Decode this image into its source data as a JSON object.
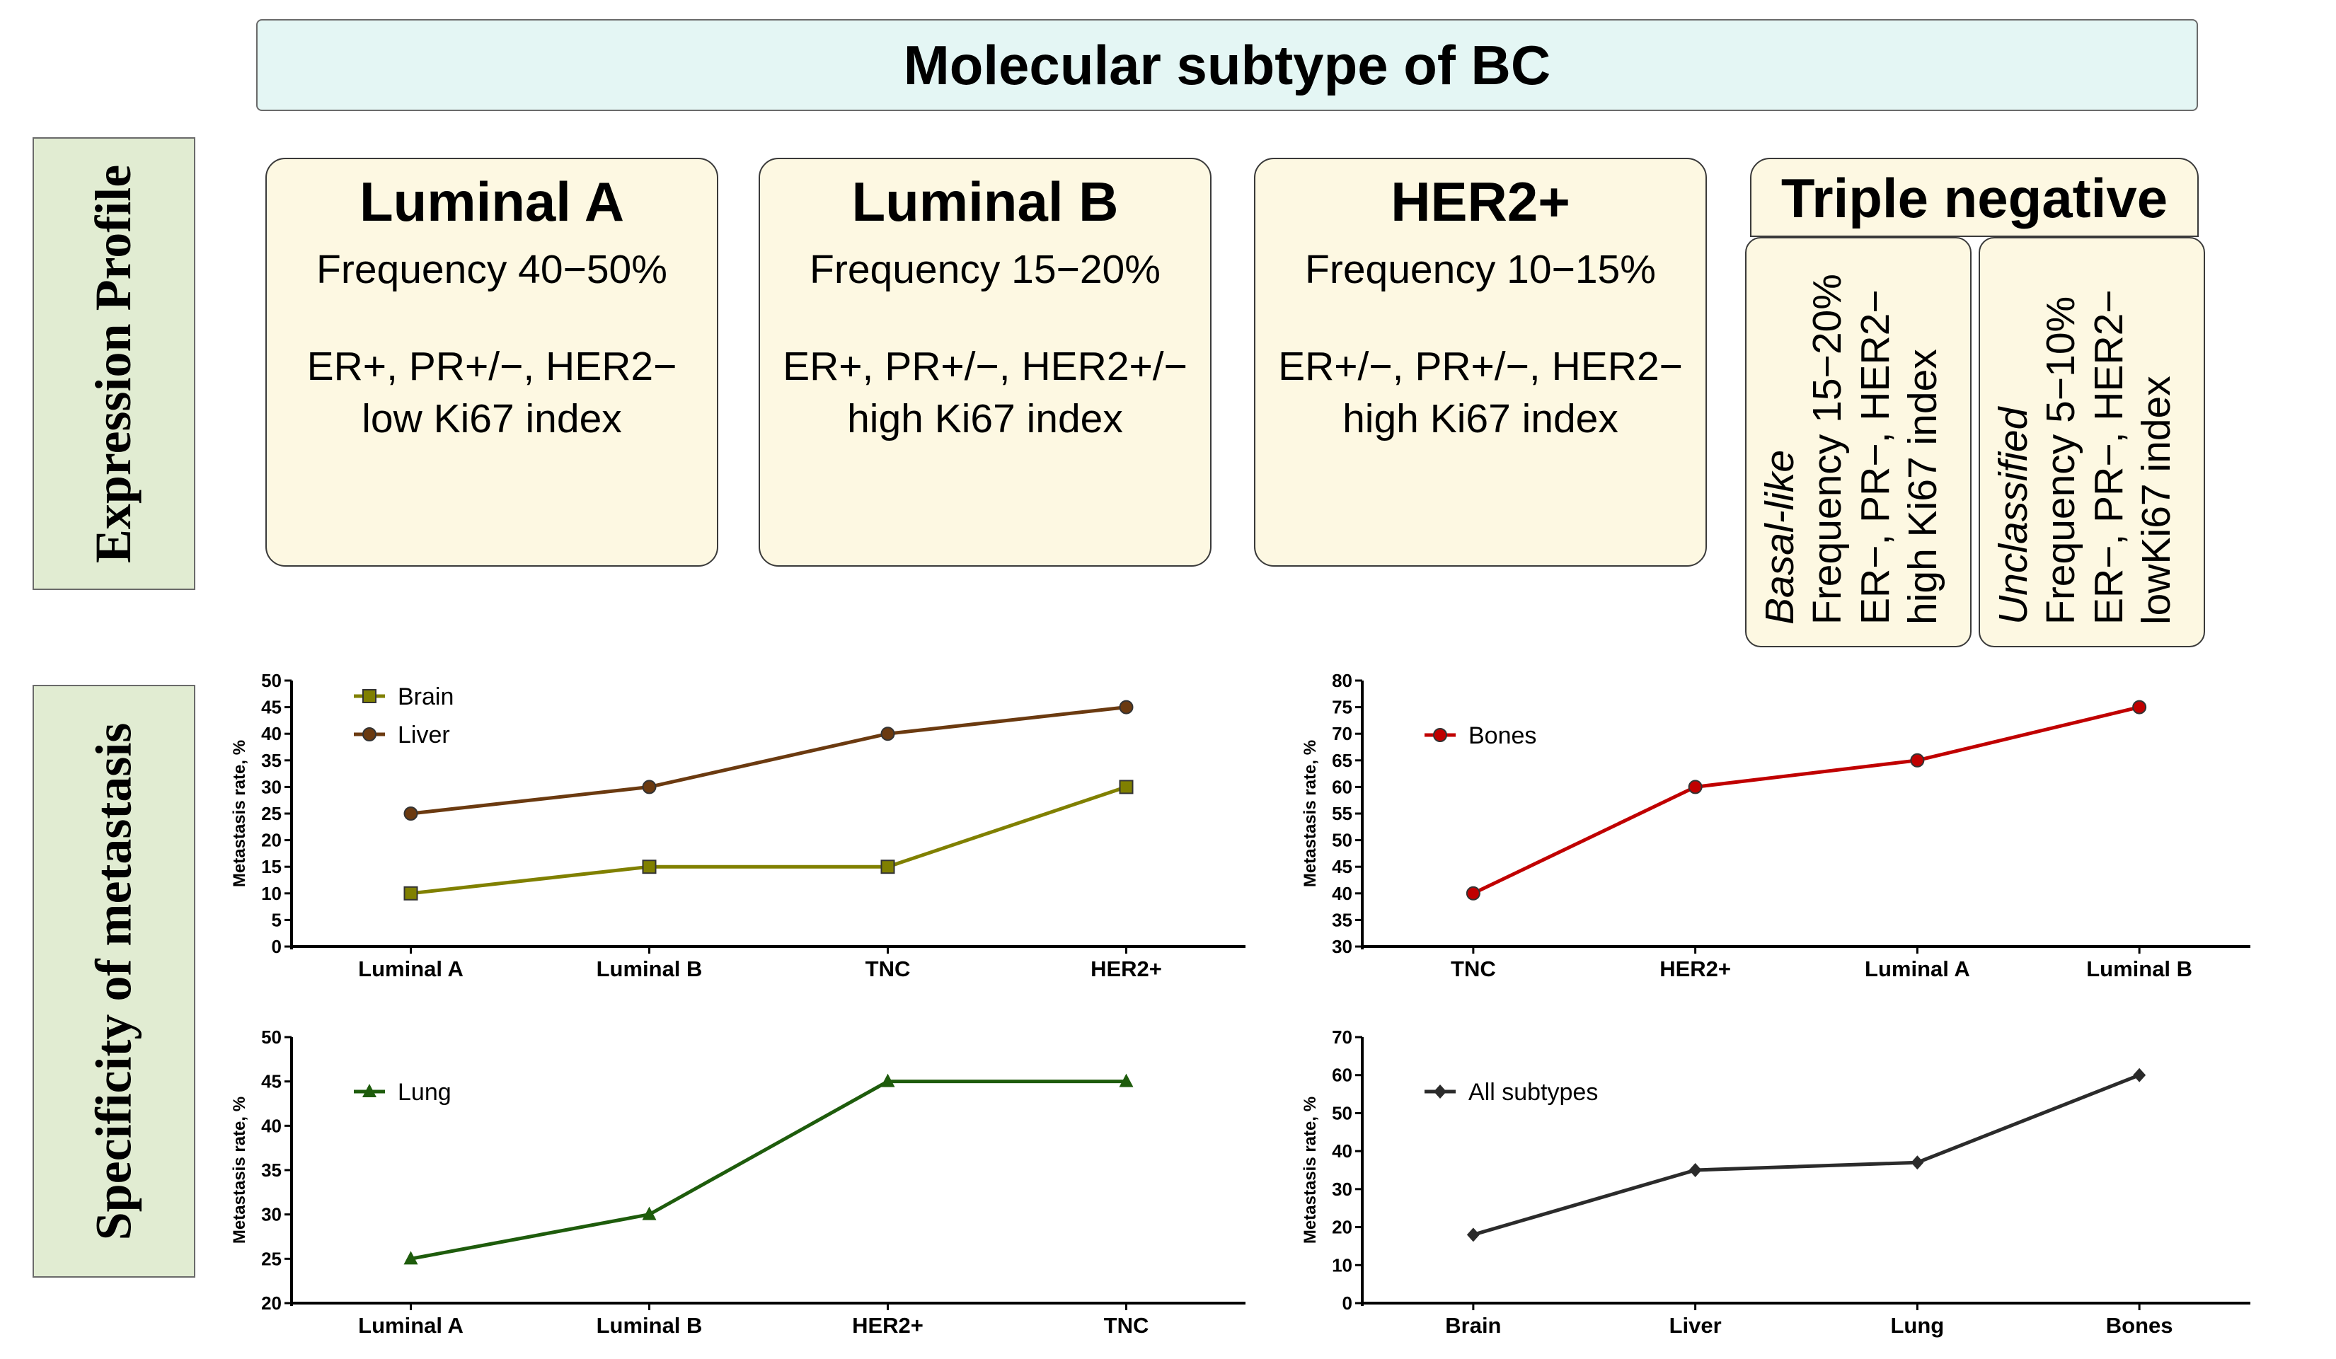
{
  "title": "Molecular subtype of BC",
  "side_labels": {
    "expression": "Expression Profile",
    "metastasis": "Specificity of metastasis"
  },
  "subtypes": [
    {
      "name": "Luminal A",
      "frequency": "Frequency 40−50%",
      "markers": "ER+, PR+/−, HER2−",
      "ki67": "low Ki67 index"
    },
    {
      "name": "Luminal B",
      "frequency": "Frequency 15−20%",
      "markers": "ER+, PR+/−, HER2+/−",
      "ki67": "high Ki67 index"
    },
    {
      "name": "HER2+",
      "frequency": "Frequency 10−15%",
      "markers": "ER+/−, PR+/−, HER2−",
      "ki67": "high Ki67 index"
    }
  ],
  "triple_negative": {
    "title": "Triple negative",
    "subgroups": [
      {
        "name": "Basal-like",
        "frequency": "Frequency 15−20%",
        "markers": "ER−, PR−, HER2−",
        "ki67": "high Ki67 index"
      },
      {
        "name": "Unclassified",
        "frequency": "Frequency 5−10%",
        "markers": "ER−, PR−, HER2−",
        "ki67": "lowKi67 index"
      }
    ]
  },
  "chart_data": [
    {
      "type": "line",
      "ylabel": "Metastasis rate, %",
      "categories": [
        "Luminal A",
        "Luminal B",
        "TNC",
        "HER2+"
      ],
      "ylim": [
        0,
        50
      ],
      "ystep": 5,
      "legend": "top-left",
      "series": [
        {
          "name": "Brain",
          "values": [
            10,
            15,
            15,
            30
          ],
          "color": "#808000",
          "marker": "square"
        },
        {
          "name": "Liver",
          "values": [
            25,
            30,
            40,
            45
          ],
          "color": "#6b3a10",
          "marker": "circle"
        }
      ]
    },
    {
      "type": "line",
      "ylabel": "Metastasis rate, %",
      "categories": [
        "TNC",
        "HER2+",
        "Luminal A",
        "Luminal B"
      ],
      "ylim": [
        30,
        80
      ],
      "ystep": 5,
      "legend": "top-left",
      "series": [
        {
          "name": "Bones",
          "values": [
            40,
            60,
            65,
            75
          ],
          "color": "#c00000",
          "marker": "circle"
        }
      ]
    },
    {
      "type": "line",
      "ylabel": "Metastasis rate, %",
      "categories": [
        "Luminal A",
        "Luminal B",
        "HER2+",
        "TNC"
      ],
      "ylim": [
        20,
        50
      ],
      "ystep": 5,
      "legend": "top-left",
      "series": [
        {
          "name": "Lung",
          "values": [
            25,
            30,
            45,
            45
          ],
          "color": "#1e5c0c",
          "marker": "triangle"
        }
      ]
    },
    {
      "type": "line",
      "ylabel": "Metastasis rate, %",
      "categories": [
        "Brain",
        "Liver",
        "Lung",
        "Bones"
      ],
      "ylim": [
        0,
        70
      ],
      "ystep": 10,
      "legend": "top-left",
      "series": [
        {
          "name": "All subtypes",
          "values": [
            18,
            35,
            37,
            60
          ],
          "color": "#2b2b2b",
          "marker": "diamond"
        }
      ]
    }
  ]
}
